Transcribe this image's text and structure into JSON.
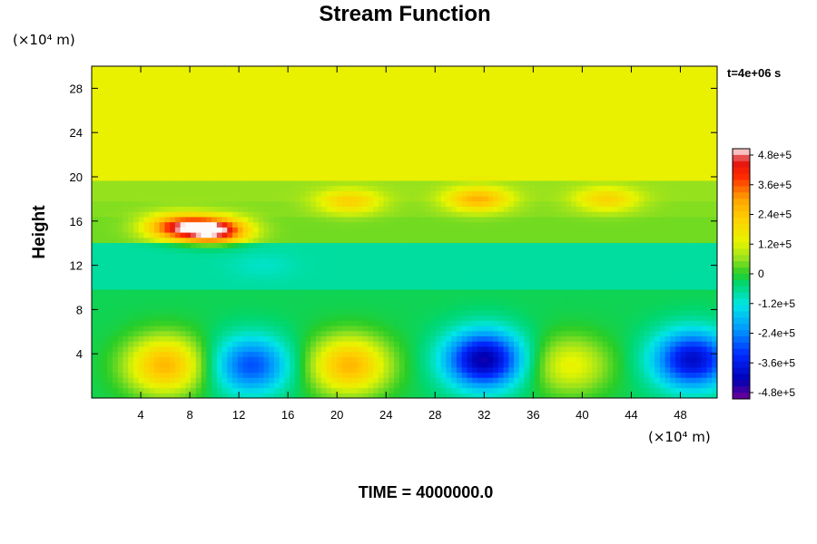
{
  "chart_data": {
    "type": "heatmap",
    "title": "Stream Function",
    "ylabel": "Height",
    "x_unit": "(×10⁴ m)",
    "y_unit": "(×10⁴ m)",
    "time_stamp": "t=4e+06 s",
    "footer": "TIME = 4000000.0",
    "xlim": [
      0,
      51
    ],
    "ylim": [
      0,
      30
    ],
    "x_ticks": [
      4,
      8,
      12,
      16,
      20,
      24,
      28,
      32,
      36,
      40,
      44,
      48
    ],
    "y_ticks": [
      4,
      8,
      12,
      16,
      20,
      24,
      28
    ],
    "colorbar": {
      "range": [
        -480000,
        480000
      ],
      "ticks": [
        "4.8e+5",
        "3.6e+5",
        "2.4e+5",
        "1.2e+5",
        "0",
        "-1.2e+5",
        "-2.4e+5",
        "-3.6e+5",
        "-4.8e+5"
      ]
    },
    "features": [
      {
        "x": 6.0,
        "y": 3.0,
        "value": 250000
      },
      {
        "x": 13.0,
        "y": 3.0,
        "value": -280000
      },
      {
        "x": 21.0,
        "y": 3.0,
        "value": 250000
      },
      {
        "x": 32.0,
        "y": 3.5,
        "value": -420000
      },
      {
        "x": 39.0,
        "y": 3.0,
        "value": 130000
      },
      {
        "x": 49.0,
        "y": 3.5,
        "value": -380000
      },
      {
        "x": 10.0,
        "y": 15.2,
        "value": 480000
      },
      {
        "x": 7.0,
        "y": 15.5,
        "value": 360000
      },
      {
        "x": 31.5,
        "y": 18.0,
        "value": 260000
      },
      {
        "x": 21.0,
        "y": 17.8,
        "value": 200000
      },
      {
        "x": 42.0,
        "y": 18.0,
        "value": 200000
      },
      {
        "x": 14.0,
        "y": 12.0,
        "value": -100000
      }
    ]
  }
}
